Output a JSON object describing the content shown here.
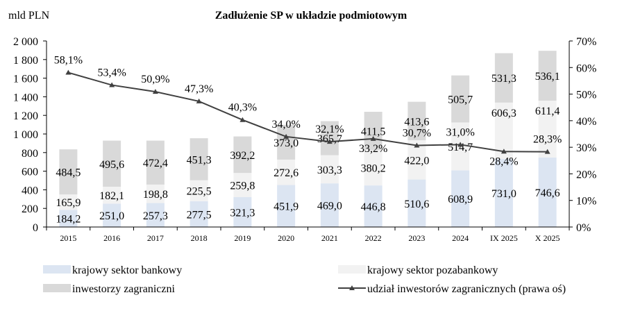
{
  "chart_data": {
    "type": "bar",
    "title": "Zadłużenie SP w układzie podmiotowym",
    "ylabel": "mld PLN",
    "ylim": [
      0,
      2000
    ],
    "y2lim": [
      0,
      70
    ],
    "yticks": [
      "0",
      "200",
      "400",
      "600",
      "800",
      "1 000",
      "1 200",
      "1 400",
      "1 600",
      "1 800",
      "2 000"
    ],
    "y2ticks": [
      "0%",
      "10%",
      "20%",
      "30%",
      "40%",
      "50%",
      "60%",
      "70%"
    ],
    "categories": [
      "2015",
      "2016",
      "2017",
      "2018",
      "2019",
      "2020",
      "2021",
      "2022",
      "2023",
      "2024",
      "IX 2025",
      "X 2025"
    ],
    "stacked": true,
    "grid": false,
    "legend_position": "bottom",
    "series": [
      {
        "name": "krajowy sektor bankowy",
        "type": "bar",
        "color": "#dce5f2",
        "values": [
          184.2,
          251.0,
          257.3,
          277.5,
          321.3,
          451.9,
          469.0,
          446.8,
          510.6,
          608.9,
          731.0,
          746.6
        ],
        "labels": [
          "184,2",
          "251,0",
          "257,3",
          "277,5",
          "321,3",
          "451,9",
          "469,0",
          "446,8",
          "510,6",
          "608,9",
          "731,0",
          "746,6"
        ]
      },
      {
        "name": "krajowy sektor pozabankowy",
        "type": "bar",
        "color": "#f2f2f2",
        "values": [
          165.9,
          182.1,
          198.8,
          225.5,
          259.8,
          272.6,
          303.3,
          380.2,
          422.0,
          514.7,
          606.3,
          611.4
        ],
        "labels": [
          "165,9",
          "182,1",
          "198,8",
          "225,5",
          "259,8",
          "272,6",
          "303,3",
          "380,2",
          "422,0",
          "514,7",
          "606,3",
          "611,4"
        ]
      },
      {
        "name": "inwestorzy zagraniczni",
        "type": "bar",
        "color": "#d9d9d9",
        "values": [
          484.5,
          495.6,
          472.4,
          451.3,
          392.2,
          373.0,
          365.7,
          411.5,
          413.6,
          505.7,
          531.3,
          536.1
        ],
        "labels": [
          "484,5",
          "495,6",
          "472,4",
          "451,3",
          "392,2",
          "373,0",
          "365,7",
          "411,5",
          "413,6",
          "505,7",
          "531,3",
          "536,1"
        ]
      },
      {
        "name": "udział inwestorów zagranicznych (prawa oś)",
        "type": "line",
        "axis": "right",
        "color": "#404040",
        "values": [
          58.1,
          53.4,
          50.9,
          47.3,
          40.3,
          34.0,
          32.1,
          33.2,
          30.7,
          31.0,
          28.4,
          28.3
        ],
        "labels": [
          "58,1%",
          "53,4%",
          "50,9%",
          "47,3%",
          "40,3%",
          "34,0%",
          "32,1%",
          "33,2%",
          "30,7%",
          "31,0%",
          "28,4%",
          "28,3%"
        ]
      }
    ]
  }
}
